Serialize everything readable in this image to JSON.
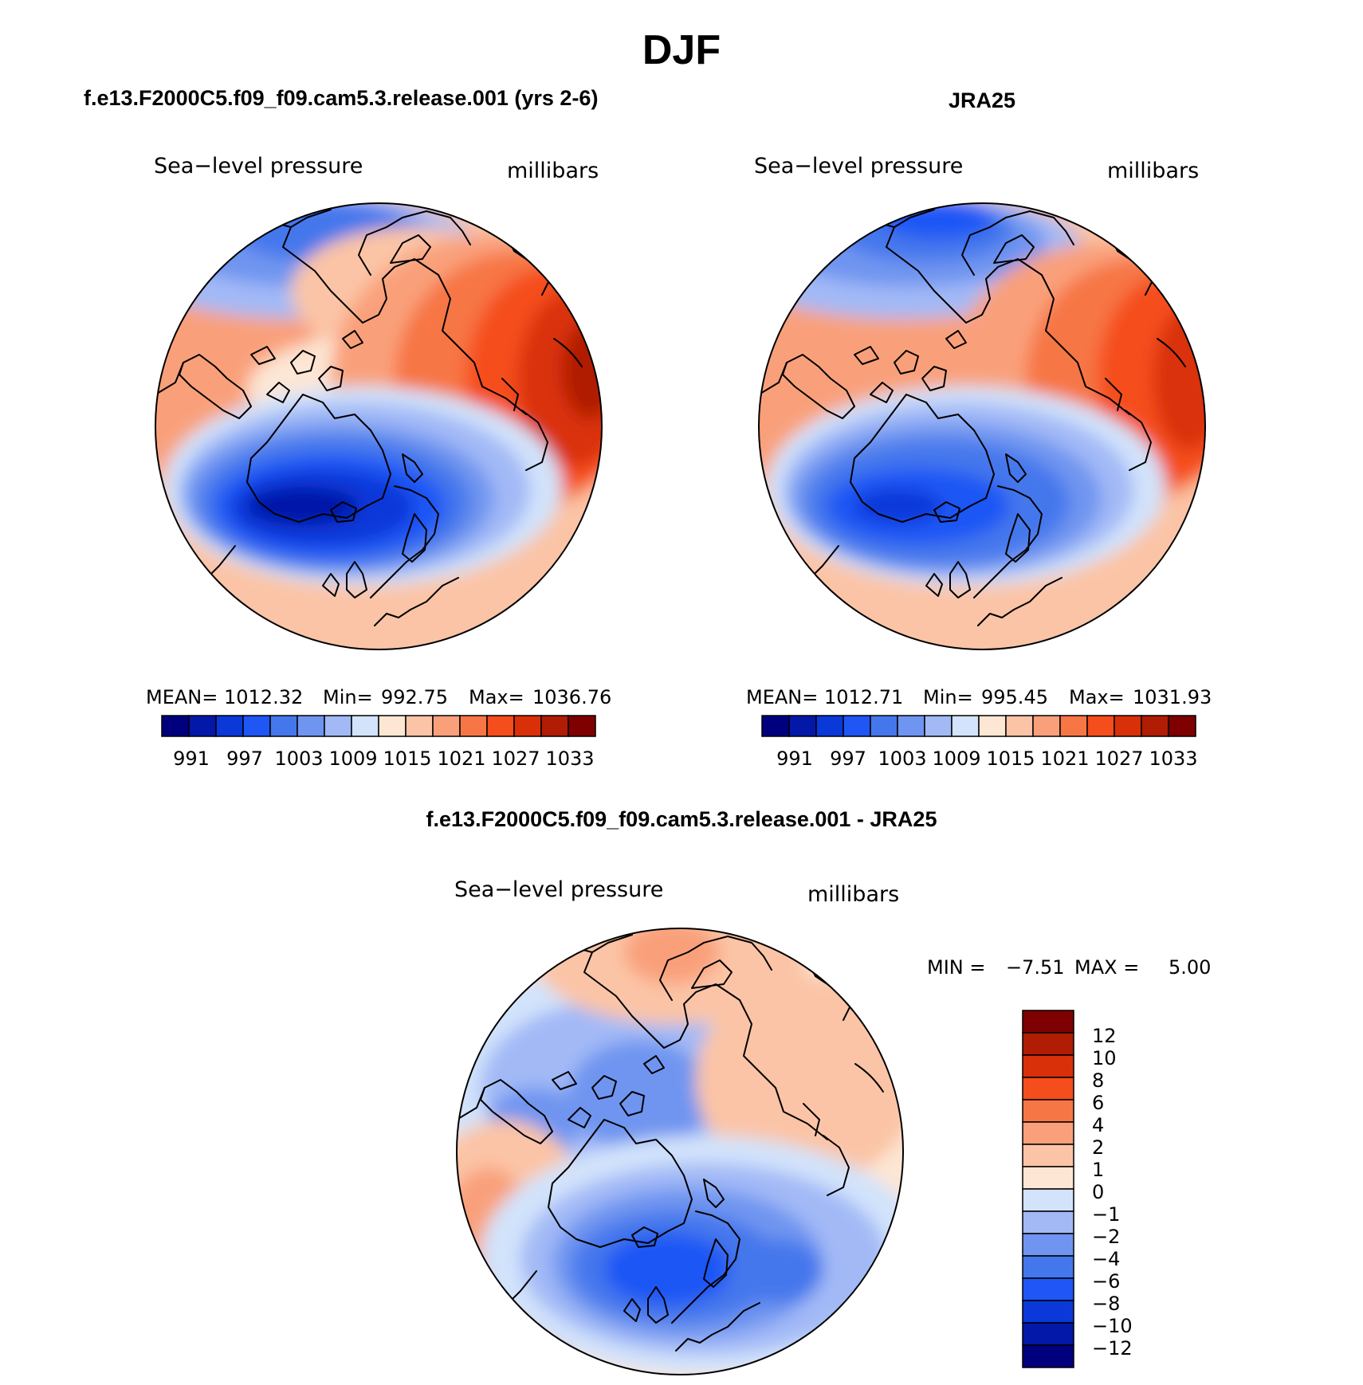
{
  "title": "DJF",
  "panels": [
    {
      "title": "f.e13.F2000C5.f09_f09.cam5.3.release.001 (yrs 2-6)",
      "variable": "Sea−level pressure",
      "units": "millibars",
      "stats": {
        "mean_label": "MEAN=",
        "mean": "1012.32",
        "min_label": "Min=",
        "min": "992.75",
        "max_label": "Max=",
        "max": "1036.76"
      },
      "colorbar_labels": [
        "991",
        "997",
        "1003",
        "1009",
        "1015",
        "1021",
        "1027",
        "1033"
      ]
    },
    {
      "title": "JRA25",
      "variable": "Sea−level pressure",
      "units": "millibars",
      "stats": {
        "mean_label": "MEAN=",
        "mean": "1012.71",
        "min_label": "Min=",
        "min": "995.45",
        "max_label": "Max=",
        "max": "1031.93"
      },
      "colorbar_labels": [
        "991",
        "997",
        "1003",
        "1009",
        "1015",
        "1021",
        "1027",
        "1033"
      ]
    },
    {
      "title": "f.e13.F2000C5.f09_f09.cam5.3.release.001 - JRA25",
      "variable": "Sea−level pressure",
      "units": "millibars",
      "stats": {
        "min_label": "MIN =",
        "min": "−7.51",
        "max_label": "MAX =",
        "max": "5.00"
      },
      "colorbar_labels": [
        "12",
        "10",
        "8",
        "6",
        "4",
        "2",
        "1",
        "0",
        "−1",
        "−2",
        "−4",
        "−6",
        "−8",
        "−10",
        "−12"
      ]
    }
  ],
  "abs_colors": [
    "#00007e",
    "#0318a8",
    "#0a38d9",
    "#1f56f5",
    "#4577ec",
    "#7095f0",
    "#a2b9f6",
    "#d2e3fb",
    "#fde6d4",
    "#fbc4a6",
    "#f9a07a",
    "#f77645",
    "#f54d1c",
    "#d9300a",
    "#b01c04",
    "#7e0000"
  ],
  "diff_colors": [
    "#7e0000",
    "#b01c04",
    "#d9300a",
    "#f54d1c",
    "#f77645",
    "#f9a07a",
    "#fbc4a6",
    "#fde6d4",
    "#d2e3fb",
    "#a2b9f6",
    "#7095f0",
    "#4577ec",
    "#1f56f5",
    "#0a38d9",
    "#0318a8",
    "#00007e"
  ]
}
